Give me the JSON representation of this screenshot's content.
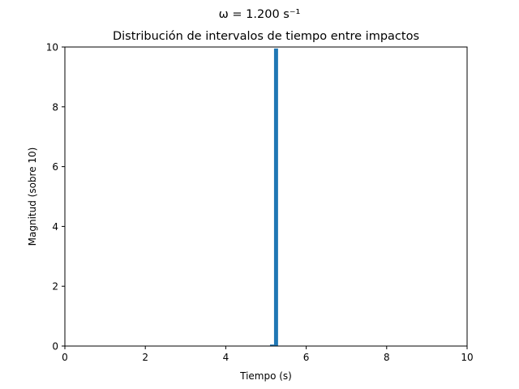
{
  "chart_data": {
    "type": "bar",
    "suptitle": "ω = 1.200 s⁻¹",
    "title": "Distribución de intervalos de tiempo entre impactos",
    "xlabel": "Tiempo (s)",
    "ylabel": "Magnitud (sobre 10)",
    "xlim": [
      0,
      10
    ],
    "ylim": [
      0,
      10
    ],
    "xticks": [
      "0",
      "2",
      "4",
      "6",
      "8",
      "10"
    ],
    "yticks": [
      "0",
      "2",
      "4",
      "6",
      "8",
      "10"
    ],
    "grid": false,
    "legend": "none",
    "bar_color": "#1f77b4",
    "bins": [
      {
        "x0": 5.1,
        "x1": 5.2,
        "value": 0.05
      },
      {
        "x0": 5.2,
        "x1": 5.3,
        "value": 9.95
      }
    ]
  }
}
